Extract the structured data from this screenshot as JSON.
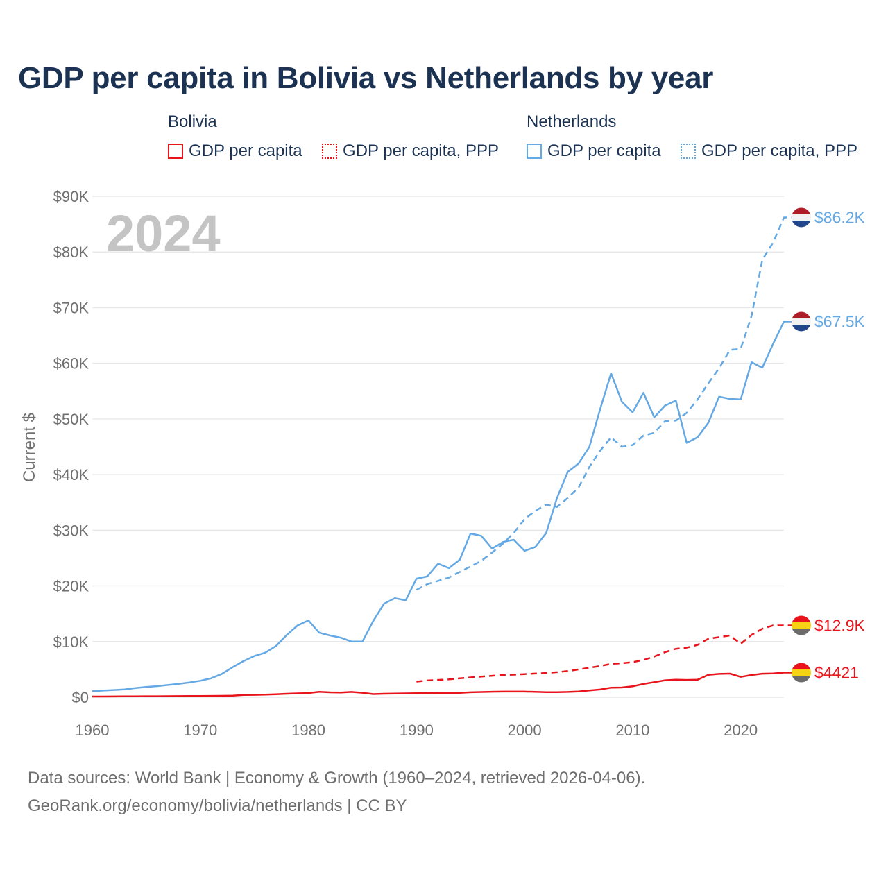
{
  "title": "GDP per capita in Bolivia vs Netherlands by year",
  "legend": {
    "groups": [
      {
        "name": "Bolivia",
        "color": "#e8141c",
        "items": [
          {
            "label": "GDP per capita",
            "style": "solid"
          },
          {
            "label": "GDP per capita, PPP",
            "style": "dotted"
          }
        ]
      },
      {
        "name": "Netherlands",
        "color": "#64a8e4",
        "items": [
          {
            "label": "GDP per capita",
            "style": "solid"
          },
          {
            "label": "GDP per capita, PPP",
            "style": "dotted"
          }
        ]
      }
    ]
  },
  "year_label": "2024",
  "footer": {
    "line1": "Data sources: World Bank | Economy & Growth (1960–2024, retrieved 2026-04-06).",
    "line2": "GeoRank.org/economy/bolivia/netherlands | CC BY"
  },
  "chart_data": {
    "type": "line",
    "title": "GDP per capita in Bolivia vs Netherlands by year",
    "xlabel": "",
    "ylabel": "Current $",
    "xlim": [
      1960,
      2024
    ],
    "ylim": [
      0,
      90000
    ],
    "x_ticks": [
      1960,
      1970,
      1980,
      1990,
      2000,
      2010,
      2020
    ],
    "x_tick_labels": [
      "1960",
      "1970",
      "1980",
      "1990",
      "2000",
      "2010",
      "2020"
    ],
    "y_ticks": [
      0,
      10000,
      20000,
      30000,
      40000,
      50000,
      60000,
      70000,
      80000,
      90000
    ],
    "y_tick_labels": [
      "$0",
      "$10K",
      "$20K",
      "$30K",
      "$40K",
      "$50K",
      "$60K",
      "$70K",
      "$80K",
      "$90K"
    ],
    "grid": true,
    "series": [
      {
        "name": "Netherlands GDP per capita",
        "country": "Netherlands",
        "color": "#64a8e4",
        "dash": "solid",
        "end_label": "$67.5K",
        "flag": "netherlands",
        "x": [
          1960,
          1961,
          1962,
          1963,
          1964,
          1965,
          1966,
          1967,
          1968,
          1969,
          1970,
          1971,
          1972,
          1973,
          1974,
          1975,
          1976,
          1977,
          1978,
          1979,
          1980,
          1981,
          1982,
          1983,
          1984,
          1985,
          1986,
          1987,
          1988,
          1989,
          1990,
          1991,
          1992,
          1993,
          1994,
          1995,
          1996,
          1997,
          1998,
          1999,
          2000,
          2001,
          2002,
          2003,
          2004,
          2005,
          2006,
          2007,
          2008,
          2009,
          2010,
          2011,
          2012,
          2013,
          2014,
          2015,
          2016,
          2017,
          2018,
          2019,
          2020,
          2021,
          2022,
          2023,
          2024
        ],
        "values": [
          1070,
          1200,
          1300,
          1400,
          1650,
          1850,
          2000,
          2200,
          2400,
          2650,
          2950,
          3400,
          4200,
          5400,
          6500,
          7400,
          8000,
          9200,
          11200,
          12900,
          13800,
          11600,
          11100,
          10700,
          10000,
          10000,
          13700,
          16800,
          17800,
          17400,
          21300,
          21700,
          24000,
          23200,
          24700,
          29400,
          29000,
          26700,
          27900,
          28300,
          26300,
          27000,
          29500,
          35800,
          40500,
          42000,
          45000,
          51800,
          58200,
          53100,
          51200,
          54700,
          50300,
          52400,
          53300,
          45700,
          46700,
          49300,
          54000,
          53600,
          53500,
          60200,
          59200,
          63500,
          67500
        ]
      },
      {
        "name": "Netherlands GDP per capita, PPP",
        "country": "Netherlands",
        "color": "#64a8e4",
        "dash": "dashed",
        "end_label": "$86.2K",
        "flag": "netherlands",
        "x": [
          1990,
          1991,
          1992,
          1993,
          1994,
          1995,
          1996,
          1997,
          1998,
          1999,
          2000,
          2001,
          2002,
          2003,
          2004,
          2005,
          2006,
          2007,
          2008,
          2009,
          2010,
          2011,
          2012,
          2013,
          2014,
          2015,
          2016,
          2017,
          2018,
          2019,
          2020,
          2021,
          2022,
          2023,
          2024
        ],
        "values": [
          19300,
          20300,
          20900,
          21500,
          22500,
          23500,
          24500,
          26000,
          27600,
          29500,
          32000,
          33500,
          34600,
          34200,
          35800,
          37700,
          41400,
          44300,
          46700,
          45000,
          45300,
          47000,
          47500,
          49600,
          49700,
          51100,
          53500,
          56400,
          59100,
          62400,
          62600,
          68500,
          78600,
          81700,
          86200
        ]
      },
      {
        "name": "Bolivia GDP per capita",
        "country": "Bolivia",
        "color": "#e8141c",
        "dash": "solid",
        "end_label": "$4421",
        "flag": "bolivia",
        "x": [
          1960,
          1961,
          1962,
          1963,
          1964,
          1965,
          1966,
          1967,
          1968,
          1969,
          1970,
          1971,
          1972,
          1973,
          1974,
          1975,
          1976,
          1977,
          1978,
          1979,
          1980,
          1981,
          1982,
          1983,
          1984,
          1985,
          1986,
          1987,
          1988,
          1989,
          1990,
          1991,
          1992,
          1993,
          1994,
          1995,
          1996,
          1997,
          1998,
          1999,
          2000,
          2001,
          2002,
          2003,
          2004,
          2005,
          2006,
          2007,
          2008,
          2009,
          2010,
          2011,
          2012,
          2013,
          2014,
          2015,
          2016,
          2017,
          2018,
          2019,
          2020,
          2021,
          2022,
          2023,
          2024
        ],
        "values": [
          120,
          130,
          140,
          150,
          160,
          170,
          180,
          190,
          200,
          210,
          230,
          240,
          250,
          280,
          400,
          420,
          470,
          540,
          620,
          690,
          750,
          960,
          870,
          830,
          950,
          800,
          560,
          620,
          660,
          680,
          710,
          750,
          770,
          780,
          790,
          880,
          940,
          990,
          1010,
          1010,
          1010,
          960,
          910,
          910,
          950,
          1030,
          1210,
          1380,
          1720,
          1750,
          1960,
          2380,
          2700,
          3040,
          3140,
          3110,
          3140,
          4010,
          4190,
          4240,
          3650,
          3990,
          4220,
          4270,
          4421
        ]
      },
      {
        "name": "Bolivia GDP per capita, PPP",
        "country": "Bolivia",
        "color": "#e8141c",
        "dash": "dashed",
        "end_label": "$12.9K",
        "flag": "bolivia",
        "x": [
          1990,
          1991,
          1992,
          1993,
          1994,
          1995,
          1996,
          1997,
          1998,
          1999,
          2000,
          2001,
          2002,
          2003,
          2004,
          2005,
          2006,
          2007,
          2008,
          2009,
          2010,
          2011,
          2012,
          2013,
          2014,
          2015,
          2016,
          2017,
          2018,
          2019,
          2020,
          2021,
          2022,
          2023,
          2024
        ],
        "values": [
          2800,
          3000,
          3100,
          3200,
          3400,
          3550,
          3700,
          3850,
          4000,
          4050,
          4150,
          4250,
          4350,
          4500,
          4700,
          5000,
          5300,
          5600,
          6000,
          6100,
          6300,
          6700,
          7300,
          8100,
          8700,
          8900,
          9400,
          10500,
          10800,
          11100,
          9600,
          11200,
          12300,
          12900,
          12900
        ]
      }
    ]
  }
}
